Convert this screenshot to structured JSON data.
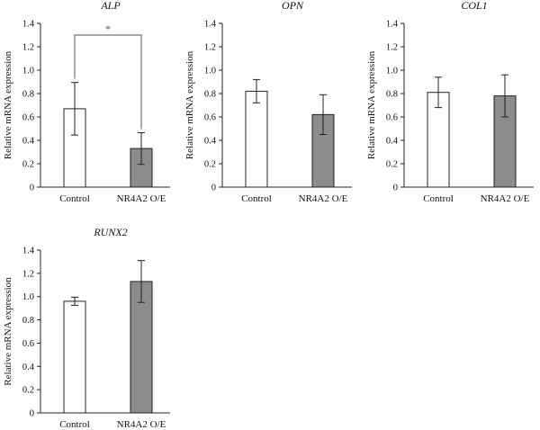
{
  "colors": {
    "control_fill": "#ffffff",
    "treated_fill": "#8c8c8c",
    "bar_stroke": "#222222",
    "axis": "#222222",
    "bracket": "#555555"
  },
  "chart_data": [
    {
      "type": "bar",
      "title": "ALP",
      "ylabel": "Relative mRNA expression",
      "categories": [
        "Control",
        "NR4A2 O/E"
      ],
      "values": [
        0.67,
        0.33
      ],
      "errors": [
        0.225,
        0.135
      ],
      "ylim": [
        0,
        1.4
      ],
      "yticks": [
        "0",
        "0.2",
        "0.4",
        "0.6",
        "0.8",
        "1.0",
        "1.2",
        "1.4"
      ],
      "significance": "*",
      "legend": "none",
      "grid": false
    },
    {
      "type": "bar",
      "title": "OPN",
      "ylabel": "Relative mRNA expression",
      "categories": [
        "Control",
        "NR4A2 O/E"
      ],
      "values": [
        0.82,
        0.62
      ],
      "errors": [
        0.1,
        0.17
      ],
      "ylim": [
        0,
        1.4
      ],
      "yticks": [
        "0",
        "0.2",
        "0.4",
        "0.6",
        "0.8",
        "1.0",
        "1.2",
        "1.4"
      ],
      "legend": "none",
      "grid": false
    },
    {
      "type": "bar",
      "title": "COL1",
      "ylabel": "Relative mRNA expression",
      "categories": [
        "Control",
        "NR4A2 O/E"
      ],
      "values": [
        0.81,
        0.78
      ],
      "errors": [
        0.13,
        0.18
      ],
      "ylim": [
        0,
        1.4
      ],
      "yticks": [
        "0",
        "0.2",
        "0.4",
        "0.6",
        "0.8",
        "1.0",
        "1.2",
        "1.4"
      ],
      "legend": "none",
      "grid": false
    },
    {
      "type": "bar",
      "title": "RUNX2",
      "ylabel": "Relative mRNA expression",
      "categories": [
        "Control",
        "NR4A2 O/E"
      ],
      "values": [
        0.96,
        1.13
      ],
      "errors": [
        0.035,
        0.18
      ],
      "ylim": [
        0,
        1.4
      ],
      "yticks": [
        "0",
        "0.2",
        "0.4",
        "0.6",
        "0.8",
        "1.0",
        "1.2",
        "1.4"
      ],
      "legend": "none",
      "grid": false
    }
  ]
}
